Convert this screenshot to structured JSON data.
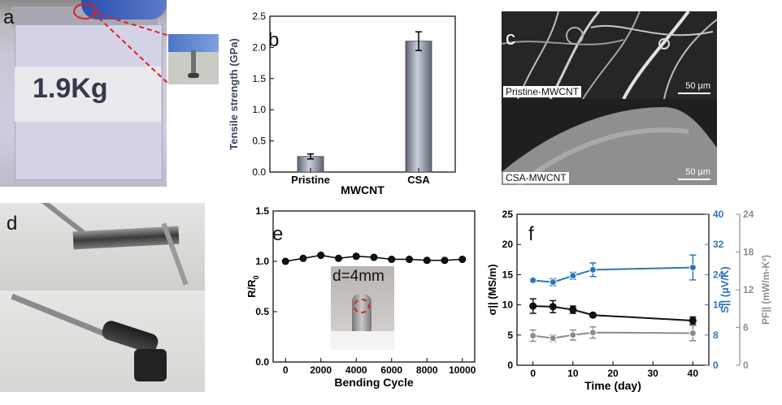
{
  "figure": {
    "panel_labels": {
      "a": "a",
      "b": "b",
      "c": "c",
      "d": "d",
      "e": "e",
      "f": "f"
    }
  },
  "panel_a": {
    "weight_label": "1.9Kg"
  },
  "panel_c": {
    "top_caption": "Pristine-MWCNT",
    "bottom_caption": "CSA-MWCNT",
    "scale_top": "50 µm",
    "scale_bottom": "50 µm"
  },
  "panel_e_inset": {
    "label": "d=4mm"
  },
  "colors": {
    "bar": "#7d8598",
    "black_series": "#111111",
    "blue_series": "#2e75b6",
    "gray_series": "#8c8c8c"
  },
  "chart_data": [
    {
      "id": "b",
      "type": "bar",
      "title": "",
      "xlabel": "MWCNT",
      "ylabel": "Tensile strength (GPa)",
      "categories": [
        "Pristine",
        "CSA"
      ],
      "values": [
        0.25,
        2.1
      ],
      "errors": [
        0.04,
        0.15
      ],
      "ylim": [
        0,
        2.5
      ],
      "yticks": [
        "0.0",
        "0.5",
        "1.0",
        "1.5",
        "2.0",
        "2.5"
      ]
    },
    {
      "id": "e",
      "type": "line",
      "xlabel": "Bending Cycle",
      "ylabel": "R/R0",
      "xlim": [
        -700,
        10700
      ],
      "ylim": [
        0,
        1.5
      ],
      "xticks": [
        "0",
        "2000",
        "4000",
        "6000",
        "8000",
        "10000"
      ],
      "yticks": [
        "0.0",
        "0.5",
        "1.0",
        "1.5"
      ],
      "x": [
        0,
        1000,
        2000,
        3000,
        4000,
        5000,
        6000,
        7000,
        8000,
        9000,
        10000
      ],
      "y": [
        1.0,
        1.03,
        1.06,
        1.03,
        1.05,
        1.04,
        1.02,
        1.02,
        1.01,
        1.01,
        1.02
      ]
    },
    {
      "id": "f",
      "type": "line",
      "xlabel": "Time (day)",
      "xlim": [
        -4,
        44
      ],
      "xticks": [
        "0",
        "10",
        "20",
        "30",
        "40"
      ],
      "x": [
        0,
        5,
        10,
        15,
        40
      ],
      "axes": {
        "left": {
          "label": "σ|| (MS/m)",
          "ylim": [
            0,
            25
          ],
          "ticks": [
            "0",
            "5",
            "10",
            "15",
            "20",
            "25"
          ]
        },
        "right1": {
          "label": "S|| (µV/K)",
          "ylim": [
            0,
            40
          ],
          "ticks": [
            "0",
            "8",
            "16",
            "24",
            "32",
            "40"
          ]
        },
        "right2": {
          "label": "PF|| (mW/m-K²)",
          "ylim": [
            0,
            24
          ],
          "ticks": [
            "0",
            "6",
            "12",
            "18",
            "24"
          ]
        }
      },
      "series": [
        {
          "name": "conductivity",
          "axis": "left",
          "values": [
            9.8,
            9.7,
            9.2,
            8.3,
            7.4
          ],
          "errors": [
            1.2,
            1.0,
            0.6,
            0.3,
            0.6
          ]
        },
        {
          "name": "seebeck",
          "axis": "right1",
          "values": [
            22.5,
            22.0,
            23.7,
            25.3,
            25.9
          ],
          "errors": [
            0.5,
            0.9,
            0.9,
            1.8,
            3.3
          ]
        },
        {
          "name": "power_factor",
          "axis": "right2",
          "values": [
            4.7,
            4.3,
            4.8,
            5.2,
            5.1
          ],
          "errors": [
            0.9,
            0.5,
            0.8,
            0.9,
            1.2
          ]
        }
      ]
    }
  ]
}
